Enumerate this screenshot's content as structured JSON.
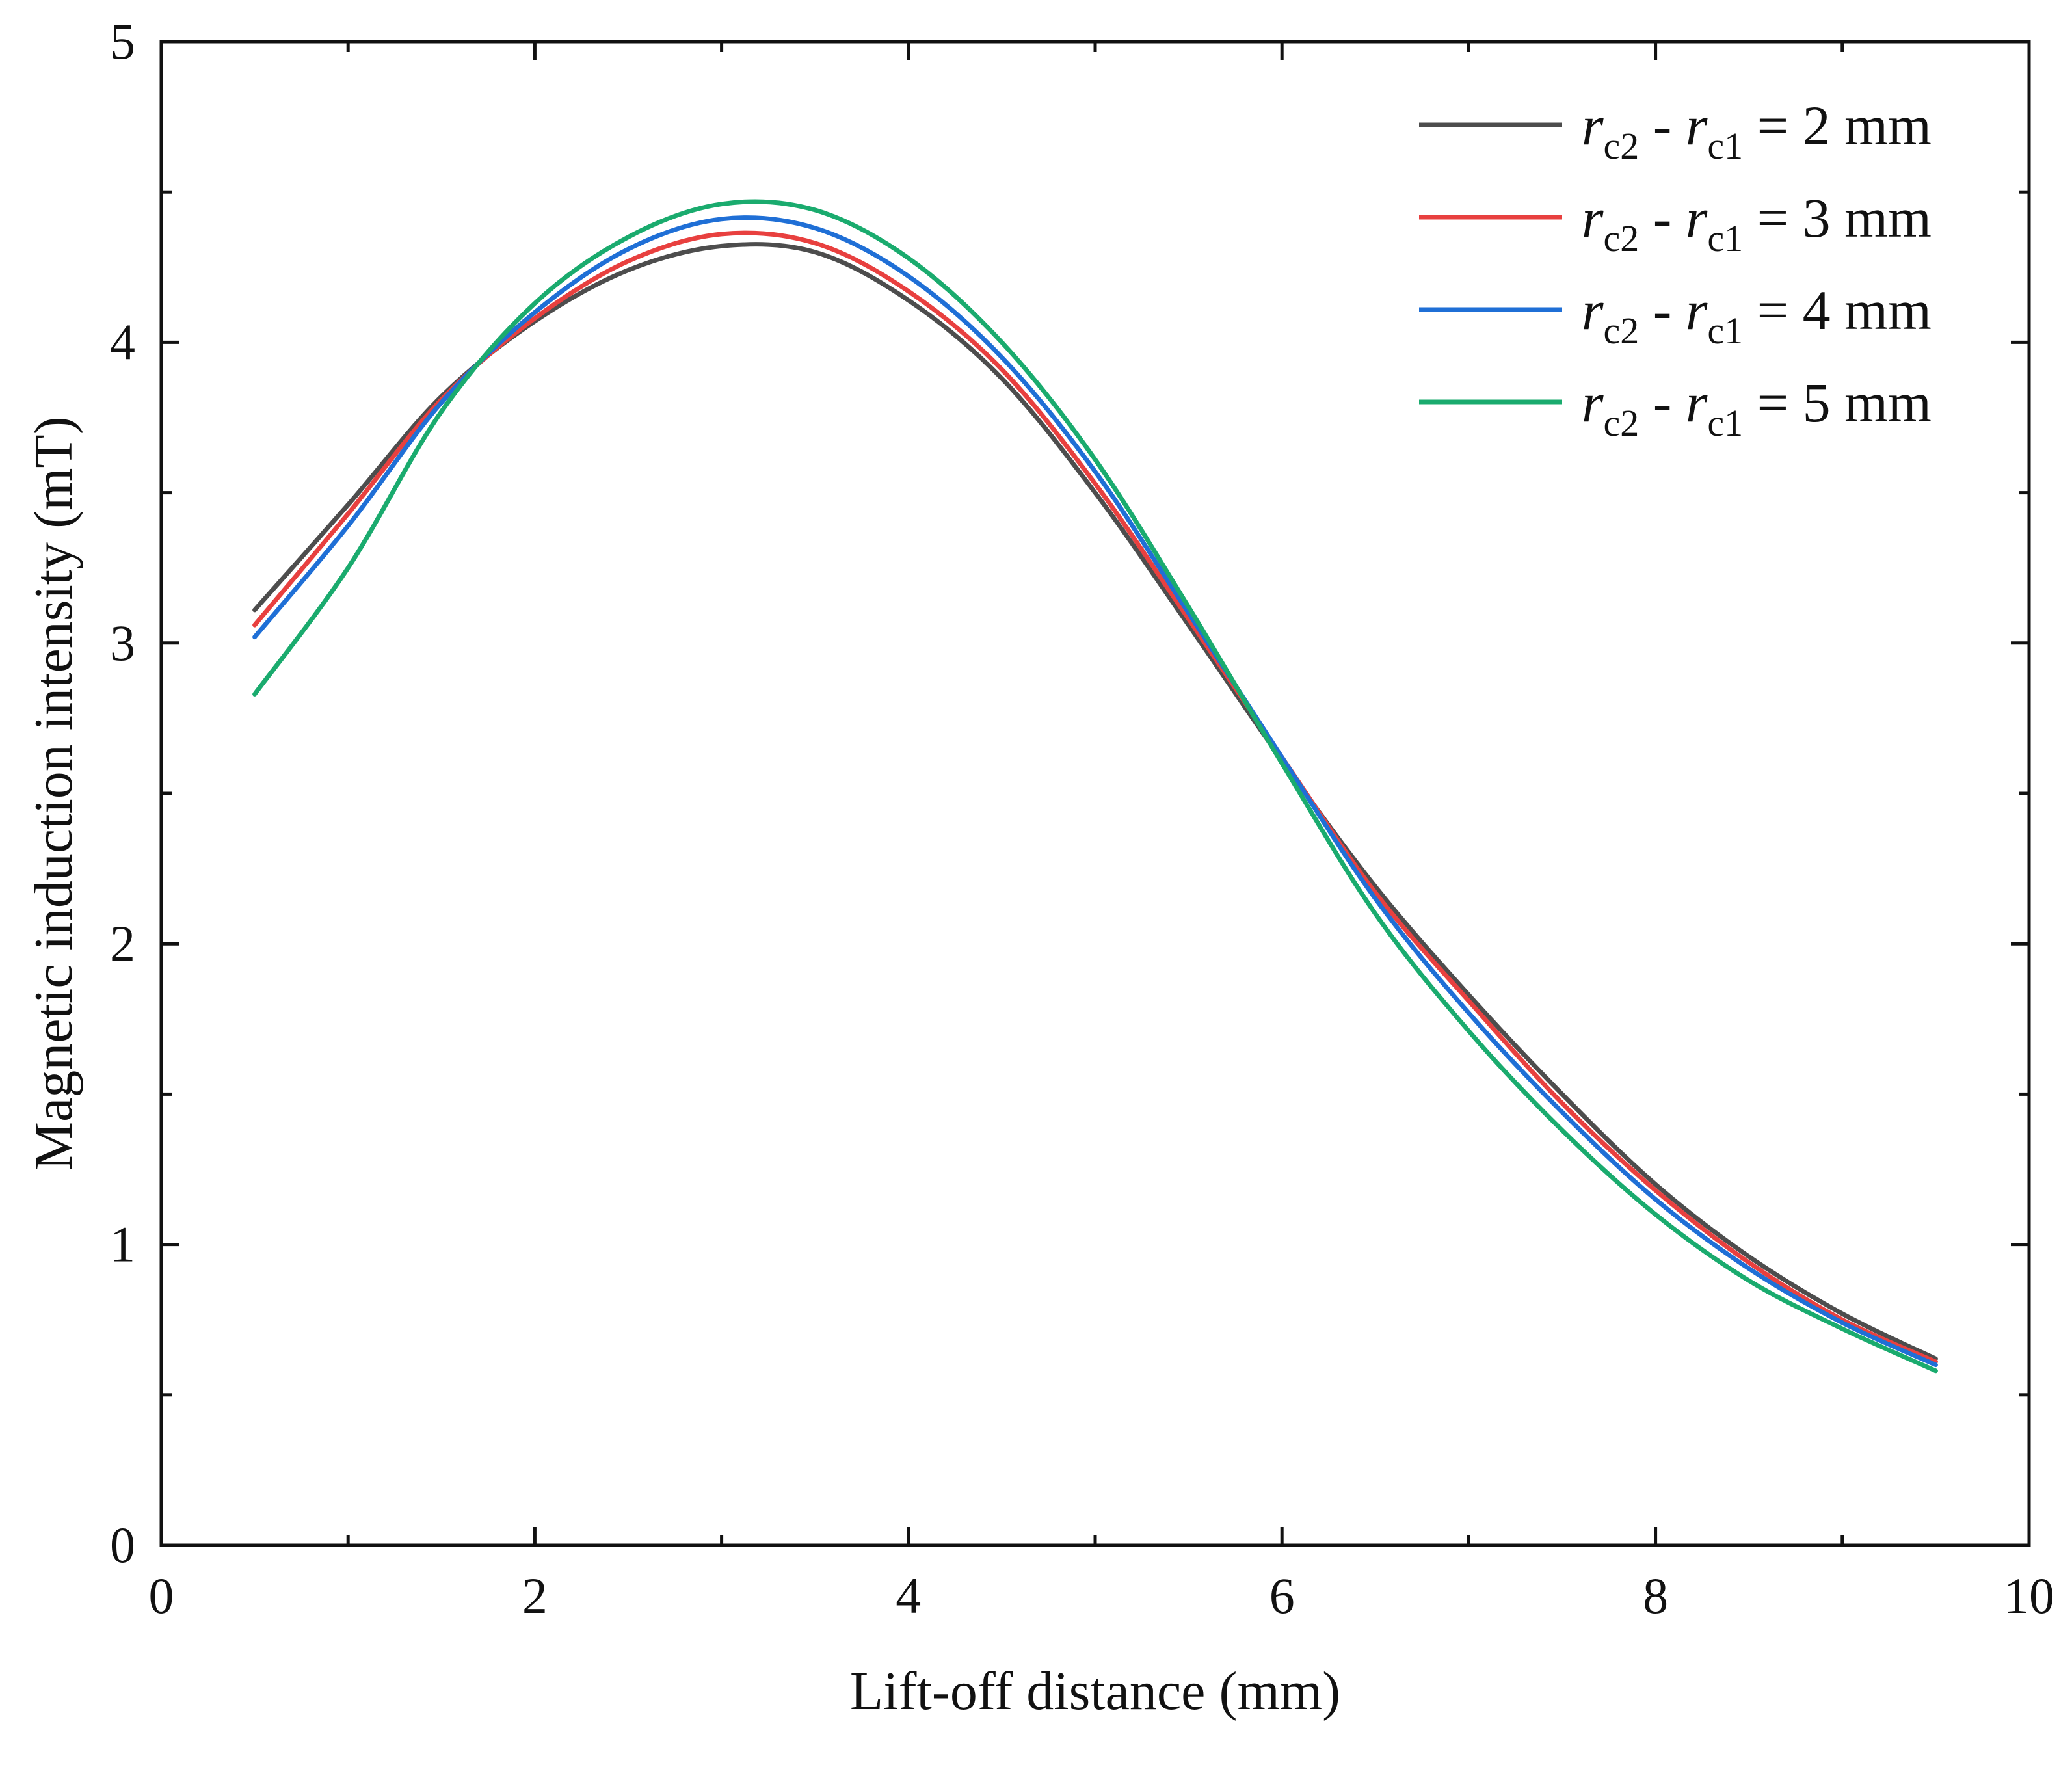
{
  "chart_data": {
    "type": "line",
    "title": "",
    "xlabel": "Lift-off distance (mm)",
    "ylabel": "Magnetic induction intensity (mT)",
    "xlim": [
      0,
      10
    ],
    "ylim": [
      0,
      5
    ],
    "xticks": [
      0,
      2,
      4,
      6,
      8,
      10
    ],
    "yticks": [
      0,
      1,
      2,
      3,
      4,
      5
    ],
    "xtick_labels": [
      "0",
      "2",
      "4",
      "6",
      "8",
      "10"
    ],
    "ytick_labels": [
      "0",
      "1",
      "2",
      "3",
      "4",
      "5"
    ],
    "grid": false,
    "legend_position": "top-right",
    "x": [
      0.5,
      1.0,
      1.5,
      2.0,
      2.5,
      3.0,
      3.5,
      4.0,
      4.5,
      5.0,
      5.5,
      6.0,
      6.5,
      7.0,
      7.5,
      8.0,
      8.5,
      9.0,
      9.5
    ],
    "series": [
      {
        "name": "r c2 - r c1 = 2 mm",
        "legend": {
          "r1": "r",
          "s1": "c2",
          "mid": " - ",
          "r2": "r",
          "s2": "c1",
          "tail": " = 2 mm"
        },
        "color": "#4d4d4d",
        "values": [
          3.11,
          3.46,
          3.82,
          4.07,
          4.24,
          4.32,
          4.3,
          4.14,
          3.88,
          3.5,
          3.06,
          2.61,
          2.19,
          1.83,
          1.5,
          1.2,
          0.96,
          0.77,
          0.62
        ]
      },
      {
        "name": "r c2 - r c1 = 3 mm",
        "legend": {
          "r1": "r",
          "s1": "c2",
          "mid": " - ",
          "r2": "r",
          "s2": "c1",
          "tail": " = 3 mm"
        },
        "color": "#e8403f",
        "values": [
          3.06,
          3.43,
          3.81,
          4.08,
          4.27,
          4.36,
          4.33,
          4.17,
          3.91,
          3.53,
          3.08,
          2.62,
          2.17,
          1.81,
          1.47,
          1.18,
          0.94,
          0.75,
          0.61
        ]
      },
      {
        "name": "r c2 - r c1 = 4 mm",
        "legend": {
          "r1": "r",
          "s1": "c2",
          "mid": " - ",
          "r2": "r",
          "s2": "c1",
          "tail": " = 4 mm"
        },
        "color": "#1f6fd6",
        "values": [
          3.02,
          3.39,
          3.8,
          4.1,
          4.31,
          4.41,
          4.38,
          4.22,
          3.95,
          3.57,
          3.1,
          2.62,
          2.15,
          1.77,
          1.44,
          1.15,
          0.92,
          0.74,
          0.6
        ]
      },
      {
        "name": "r c2 - r c1 = 5 mm",
        "legend": {
          "r1": "r",
          "s1": "c2",
          "mid": " - ",
          "r2": "r",
          "s2": "c1",
          "tail": " = 5 mm"
        },
        "color": "#1aab6e",
        "values": [
          2.83,
          3.25,
          3.77,
          4.13,
          4.35,
          4.46,
          4.44,
          4.28,
          4.0,
          3.61,
          3.12,
          2.6,
          2.1,
          1.71,
          1.38,
          1.1,
          0.88,
          0.72,
          0.58
        ]
      }
    ]
  }
}
